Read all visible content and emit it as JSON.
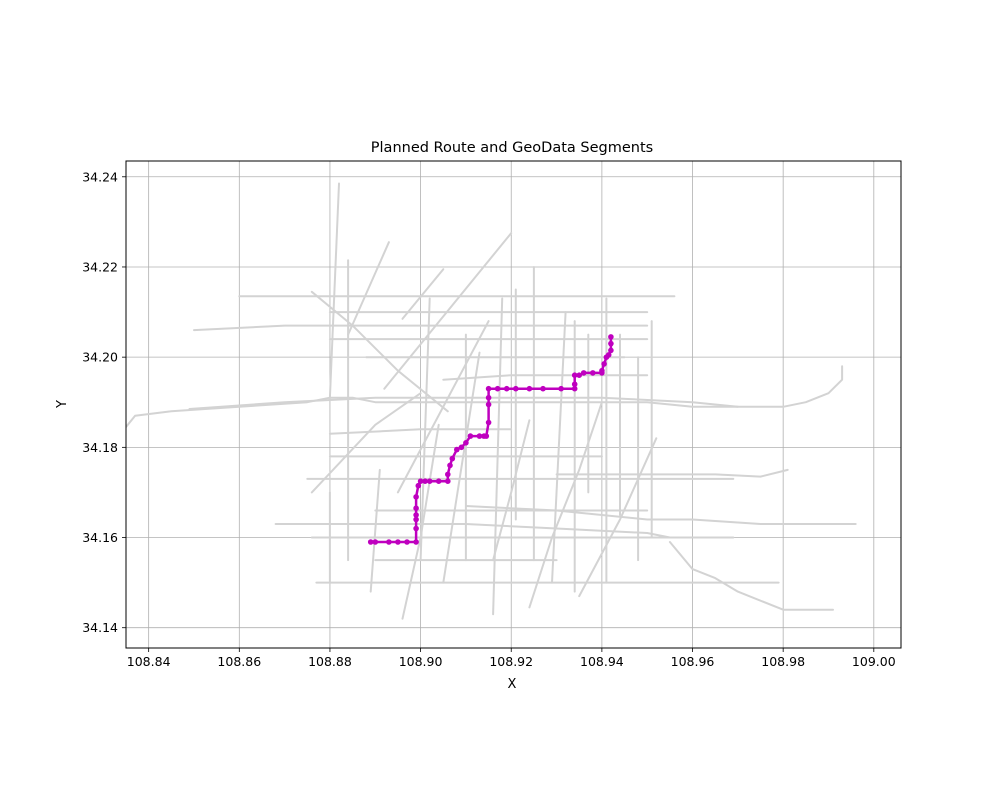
{
  "chart_data": {
    "type": "line",
    "title": "Planned Route and GeoData Segments",
    "xlabel": "X",
    "ylabel": "Y",
    "xlim": [
      108.835,
      109.006
    ],
    "ylim": [
      34.1355,
      34.2435
    ],
    "xticks": [
      108.84,
      108.86,
      108.88,
      108.9,
      108.92,
      108.94,
      108.96,
      108.98,
      109.0
    ],
    "xtick_labels": [
      "108.84",
      "108.86",
      "108.88",
      "108.90",
      "108.92",
      "108.94",
      "108.96",
      "108.98",
      "109.00"
    ],
    "yticks": [
      34.14,
      34.16,
      34.18,
      34.2,
      34.22,
      34.24
    ],
    "ytick_labels": [
      "34.14",
      "34.16",
      "34.18",
      "34.20",
      "34.22",
      "34.24"
    ],
    "grid": true,
    "colors": {
      "route": "#bf00bf",
      "segments": "#d3d3d3",
      "grid": "#b0b0b0"
    },
    "series": [
      {
        "role": "route",
        "x": [
          108.889,
          108.89,
          108.893,
          108.895,
          108.897,
          108.899,
          108.899,
          108.899,
          108.899,
          108.899,
          108.899,
          108.8995,
          108.9,
          108.901,
          108.902,
          108.904,
          108.906,
          108.906,
          108.9065,
          108.907,
          108.908,
          108.909,
          108.91,
          108.911,
          108.913,
          108.914,
          108.9145,
          108.915,
          108.915,
          108.915,
          108.915,
          108.917,
          108.919,
          108.921,
          108.924,
          108.927,
          108.931,
          108.934,
          108.934,
          108.934,
          108.935,
          108.936,
          108.938,
          108.94,
          108.94,
          108.9405,
          108.941,
          108.9415,
          108.942,
          108.942,
          108.942
        ],
        "y": [
          34.159,
          34.159,
          34.159,
          34.159,
          34.159,
          34.159,
          34.162,
          34.164,
          34.165,
          34.1665,
          34.169,
          34.1715,
          34.1725,
          34.1725,
          34.1725,
          34.1725,
          34.1725,
          34.174,
          34.176,
          34.1775,
          34.1795,
          34.18,
          34.181,
          34.1825,
          34.1825,
          34.1825,
          34.1825,
          34.1855,
          34.1895,
          34.191,
          34.193,
          34.193,
          34.193,
          34.193,
          34.193,
          34.193,
          34.193,
          34.193,
          34.194,
          34.196,
          34.196,
          34.1965,
          34.1965,
          34.1965,
          34.197,
          34.1985,
          34.2,
          34.2005,
          34.2015,
          34.203,
          34.2045
        ]
      },
      {
        "role": "segments",
        "lines": [
          {
            "x": [
              108.835,
              108.837,
              108.845,
              108.86,
              108.875,
              108.88,
              108.885,
              108.89,
              108.9,
              108.91,
              108.92,
              108.93,
              108.94,
              108.95,
              108.96,
              108.97,
              108.975,
              108.98,
              108.985,
              108.99,
              108.993,
              108.993
            ],
            "y": [
              34.1845,
              34.187,
              34.188,
              34.189,
              34.19,
              34.191,
              34.191,
              34.19,
              34.19,
              34.19,
              34.19,
              34.19,
              34.19,
              34.19,
              34.189,
              34.189,
              34.189,
              34.189,
              34.19,
              34.192,
              34.195,
              34.198
            ]
          },
          {
            "x": [
              108.849,
              108.87,
              108.89,
              108.91,
              108.94,
              108.96,
              108.97
            ],
            "y": [
              34.1885,
              34.19,
              34.191,
              34.191,
              34.191,
              34.19,
              34.189
            ]
          },
          {
            "x": [
              108.85,
              108.87,
              108.89,
              108.91,
              108.93,
              108.95
            ],
            "y": [
              34.206,
              34.207,
              34.207,
              34.207,
              34.207,
              34.207
            ]
          },
          {
            "x": [
              108.86,
              108.88,
              108.9,
              108.92,
              108.94,
              108.956
            ],
            "y": [
              34.2135,
              34.2135,
              34.2135,
              34.2135,
              34.2135,
              34.2135
            ]
          },
          {
            "x": [
              108.868,
              108.89,
              108.91,
              108.93,
              108.95,
              108.955
            ],
            "y": [
              34.163,
              34.163,
              34.163,
              34.162,
              34.161,
              34.16
            ]
          },
          {
            "x": [
              108.875,
              108.89,
              108.91,
              108.93,
              108.95,
              108.969
            ],
            "y": [
              34.173,
              34.173,
              34.173,
              34.173,
              34.173,
              34.173
            ]
          },
          {
            "x": [
              108.93,
              108.95,
              108.965,
              108.975,
              108.981
            ],
            "y": [
              34.174,
              34.174,
              34.174,
              34.1735,
              34.175
            ]
          },
          {
            "x": [
              108.876,
              108.89,
              108.91,
              108.93,
              108.95,
              108.969
            ],
            "y": [
              34.16,
              34.16,
              34.16,
              34.16,
              34.16,
              34.16
            ]
          },
          {
            "x": [
              108.877,
              108.89,
              108.91,
              108.93,
              108.95,
              108.96,
              108.979
            ],
            "y": [
              34.15,
              34.15,
              34.15,
              34.15,
              34.15,
              34.15,
              34.15
            ]
          },
          {
            "x": [
              108.91,
              108.93,
              108.95,
              108.96,
              108.975,
              108.996
            ],
            "y": [
              34.167,
              34.166,
              34.164,
              34.164,
              34.163,
              34.163
            ]
          },
          {
            "x": [
              108.955,
              108.96,
              108.965,
              108.97,
              108.98,
              108.991
            ],
            "y": [
              34.159,
              34.153,
              34.151,
              34.148,
              34.144,
              34.144
            ]
          },
          {
            "x": [
              108.88,
              108.882
            ],
            "y": [
              34.191,
              34.2385
            ]
          },
          {
            "x": [
              108.884,
              108.884
            ],
            "y": [
              34.155,
              34.2215
            ]
          },
          {
            "x": [
              108.876,
              108.885,
              108.895,
              108.906
            ],
            "y": [
              34.2145,
              34.207,
              34.197,
              34.188
            ]
          },
          {
            "x": [
              108.884,
              108.893
            ],
            "y": [
              34.205,
              34.2255
            ]
          },
          {
            "x": [
              108.896,
              108.905
            ],
            "y": [
              34.2085,
              34.2195
            ]
          },
          {
            "x": [
              108.892,
              108.92
            ],
            "y": [
              34.193,
              34.2275
            ]
          },
          {
            "x": [
              108.895,
              108.915
            ],
            "y": [
              34.17,
              34.208
            ]
          },
          {
            "x": [
              108.905,
              108.913
            ],
            "y": [
              34.15,
              34.201
            ]
          },
          {
            "x": [
              108.896,
              108.9,
              108.904
            ],
            "y": [
              34.142,
              34.16,
              34.185
            ]
          },
          {
            "x": [
              108.876,
              108.89,
              108.9
            ],
            "y": [
              34.17,
              34.185,
              34.192
            ]
          },
          {
            "x": [
              108.9,
              108.902
            ],
            "y": [
              34.155,
              34.213
            ]
          },
          {
            "x": [
              108.91,
              108.91
            ],
            "y": [
              34.155,
              34.205
            ]
          },
          {
            "x": [
              108.916,
              108.918
            ],
            "y": [
              34.143,
              34.213
            ]
          },
          {
            "x": [
              108.921,
              108.921
            ],
            "y": [
              34.164,
              34.215
            ]
          },
          {
            "x": [
              108.925,
              108.925
            ],
            "y": [
              34.155,
              34.22
            ]
          },
          {
            "x": [
              108.929,
              108.932
            ],
            "y": [
              34.15,
              34.21
            ]
          },
          {
            "x": [
              108.934,
              108.934
            ],
            "y": [
              34.148,
              34.208
            ]
          },
          {
            "x": [
              108.937,
              108.937
            ],
            "y": [
              34.17,
              34.205
            ]
          },
          {
            "x": [
              108.941,
              108.941
            ],
            "y": [
              34.15,
              34.213
            ]
          },
          {
            "x": [
              108.944,
              108.944
            ],
            "y": [
              34.165,
              34.205
            ]
          },
          {
            "x": [
              108.948,
              108.948
            ],
            "y": [
              34.155,
              34.2
            ]
          },
          {
            "x": [
              108.951,
              108.951
            ],
            "y": [
              34.16,
              34.208
            ]
          },
          {
            "x": [
              108.924,
              108.929,
              108.935,
              108.94
            ],
            "y": [
              34.1445,
              34.16,
              34.175,
              34.19
            ]
          },
          {
            "x": [
              108.935,
              108.944,
              108.952
            ],
            "y": [
              34.147,
              34.164,
              34.182
            ]
          },
          {
            "x": [
              108.916,
              108.92,
              108.924
            ],
            "y": [
              34.155,
              34.17,
              34.186
            ]
          },
          {
            "x": [
              108.889,
              108.891
            ],
            "y": [
              34.148,
              34.175
            ]
          },
          {
            "x": [
              108.88,
              108.88
            ],
            "y": [
              34.15,
              34.17
            ]
          },
          {
            "x": [
              108.905,
              108.92,
              108.935,
              108.95
            ],
            "y": [
              34.195,
              34.196,
              34.196,
              34.196
            ]
          },
          {
            "x": [
              108.888,
              108.9,
              108.915,
              108.93,
              108.945
            ],
            "y": [
              34.2,
              34.2,
              34.2,
              34.2,
              34.2
            ]
          },
          {
            "x": [
              108.88,
              108.895,
              108.91,
              108.93,
              108.95
            ],
            "y": [
              34.204,
              34.204,
              34.204,
              34.204,
              34.204
            ]
          },
          {
            "x": [
              108.88,
              108.895,
              108.91,
              108.93,
              108.95
            ],
            "y": [
              34.21,
              34.21,
              34.21,
              34.21,
              34.21
            ]
          },
          {
            "x": [
              108.88,
              108.9,
              108.92
            ],
            "y": [
              34.183,
              34.184,
              34.184
            ]
          },
          {
            "x": [
              108.88,
              108.9,
              108.92,
              108.94
            ],
            "y": [
              34.178,
              34.178,
              34.178,
              34.178
            ]
          },
          {
            "x": [
              108.89,
              108.91,
              108.93,
              108.95
            ],
            "y": [
              34.166,
              34.166,
              34.166,
              34.166
            ]
          },
          {
            "x": [
              108.89,
              108.91,
              108.93
            ],
            "y": [
              34.155,
              34.155,
              34.155
            ]
          }
        ]
      }
    ]
  }
}
